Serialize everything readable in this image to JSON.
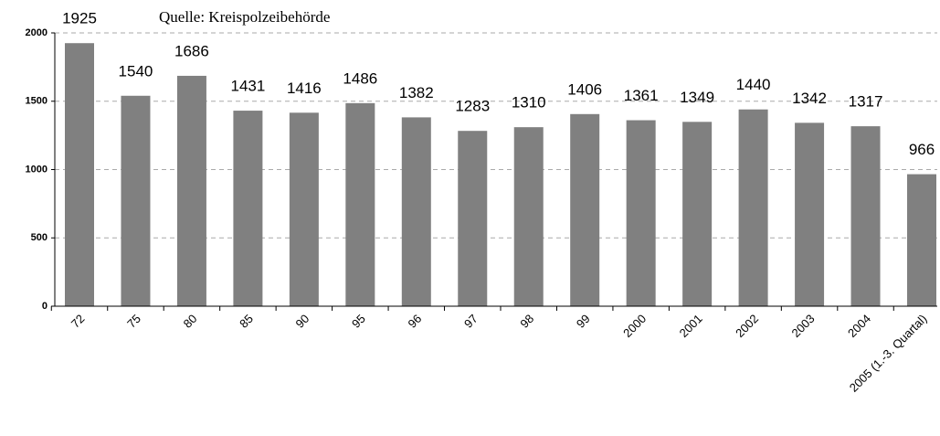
{
  "chart_data": {
    "type": "bar",
    "subtitle": "Quelle: Kreispolzeibehörde",
    "categories": [
      "72",
      "75",
      "80",
      "85",
      "90",
      "95",
      "96",
      "97",
      "98",
      "99",
      "2000",
      "2001",
      "2002",
      "2003",
      "2004",
      "2005 (1.-3. Quartal)"
    ],
    "values": [
      1925,
      1540,
      1686,
      1431,
      1416,
      1486,
      1382,
      1283,
      1310,
      1406,
      1361,
      1349,
      1440,
      1342,
      1317,
      966
    ],
    "color": "#808080",
    "ylim": [
      0,
      2000
    ],
    "yticks": [
      0,
      500,
      1000,
      1500,
      2000
    ],
    "grid": true
  }
}
